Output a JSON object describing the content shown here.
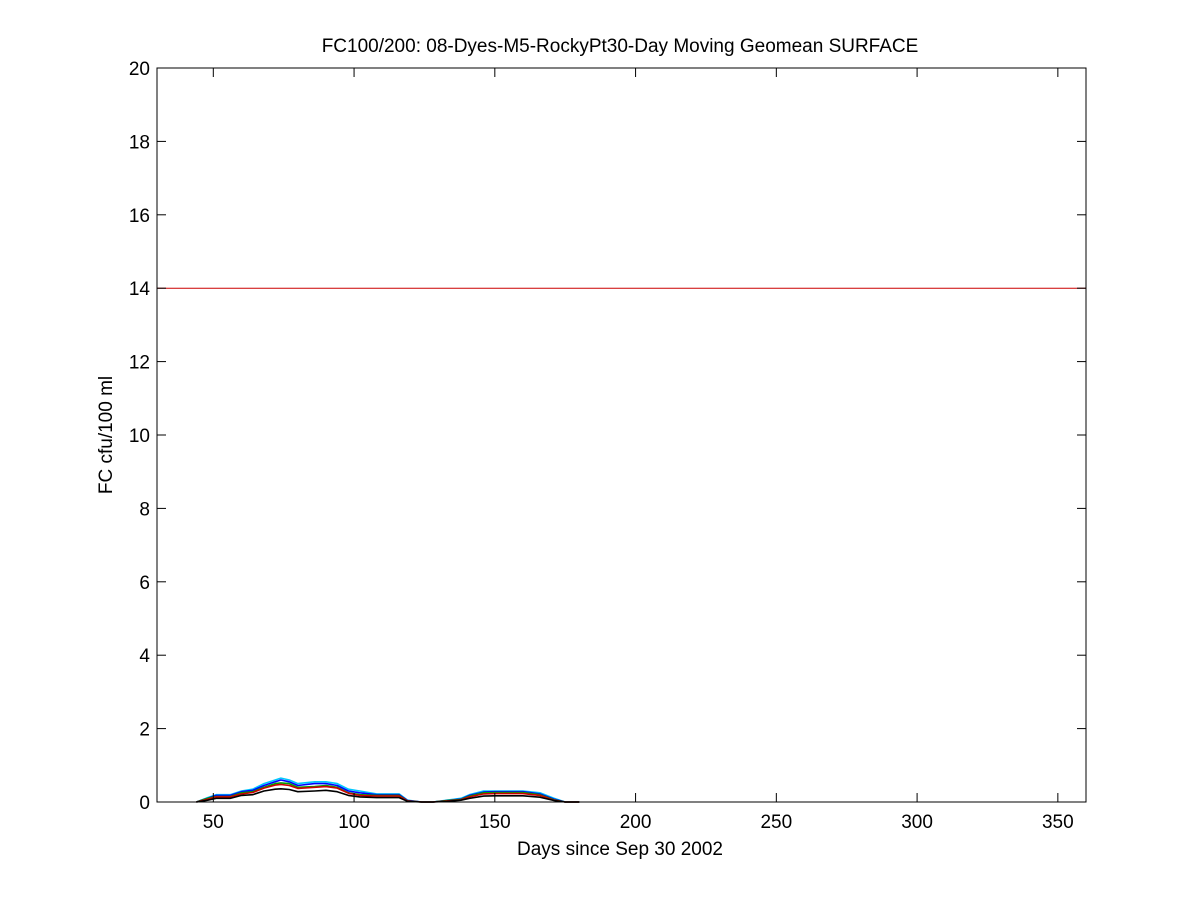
{
  "chart_data": {
    "type": "line",
    "title": "FC100/200: 08-Dyes-M5-RockyPt30-Day Moving Geomean SURFACE",
    "xlabel": "Days since Sep 30 2002",
    "ylabel": "FC cfu/100 ml",
    "xlim": [
      30,
      360
    ],
    "ylim": [
      0,
      20
    ],
    "x_ticks": [
      50,
      100,
      150,
      200,
      250,
      300,
      350
    ],
    "y_ticks": [
      0,
      2,
      4,
      6,
      8,
      10,
      12,
      14,
      16,
      18,
      20
    ],
    "x_tick_labels": [
      "50",
      "100",
      "150",
      "200",
      "250",
      "300",
      "350"
    ],
    "y_tick_labels": [
      "0",
      "2",
      "4",
      "6",
      "8",
      "10",
      "12",
      "14",
      "16",
      "18",
      "20"
    ],
    "grid": false,
    "legend": "none",
    "reference_lines": [
      {
        "y": 14,
        "color": "#cc0000"
      }
    ],
    "series": [
      {
        "color": "#00c8ff",
        "x": [
          44,
          48,
          51,
          56,
          60,
          64,
          68,
          72,
          74,
          77,
          80,
          86,
          90,
          94,
          98,
          102,
          108,
          116,
          119,
          124,
          128,
          133,
          138,
          141,
          146,
          150,
          160,
          166,
          171,
          175,
          180
        ],
        "y": [
          0,
          0.12,
          0.2,
          0.2,
          0.3,
          0.35,
          0.5,
          0.6,
          0.65,
          0.6,
          0.5,
          0.55,
          0.55,
          0.5,
          0.35,
          0.3,
          0.22,
          0.22,
          0.05,
          0,
          0,
          0.05,
          0.1,
          0.2,
          0.3,
          0.3,
          0.3,
          0.25,
          0.1,
          0,
          0
        ]
      },
      {
        "color": "#0000ff",
        "x": [
          44,
          48,
          51,
          56,
          60,
          64,
          68,
          72,
          74,
          77,
          80,
          86,
          90,
          94,
          98,
          102,
          108,
          116,
          119,
          124,
          128,
          133,
          138,
          141,
          146,
          150,
          160,
          166,
          171,
          175,
          180
        ],
        "y": [
          0,
          0.1,
          0.18,
          0.18,
          0.28,
          0.32,
          0.45,
          0.55,
          0.6,
          0.55,
          0.45,
          0.5,
          0.5,
          0.45,
          0.3,
          0.25,
          0.2,
          0.2,
          0.04,
          0,
          0,
          0.04,
          0.08,
          0.18,
          0.27,
          0.28,
          0.28,
          0.22,
          0.08,
          0,
          0
        ]
      },
      {
        "color": "#00a000",
        "x": [
          44,
          48,
          51,
          56,
          60,
          64,
          68,
          72,
          74,
          77,
          80,
          86,
          90,
          94,
          98,
          102,
          108,
          116,
          119,
          124,
          128,
          133,
          138,
          141,
          146,
          150,
          160,
          166,
          171,
          175,
          180
        ],
        "y": [
          0,
          0.1,
          0.15,
          0.15,
          0.25,
          0.28,
          0.4,
          0.5,
          0.52,
          0.5,
          0.4,
          0.42,
          0.45,
          0.4,
          0.25,
          0.2,
          0.18,
          0.18,
          0.03,
          0,
          0,
          0.04,
          0.07,
          0.16,
          0.25,
          0.26,
          0.26,
          0.2,
          0.06,
          0,
          0
        ]
      },
      {
        "color": "#cc0000",
        "x": [
          44,
          48,
          51,
          56,
          60,
          64,
          68,
          72,
          74,
          77,
          80,
          86,
          90,
          94,
          98,
          102,
          108,
          116,
          119,
          124,
          128,
          133,
          138,
          141,
          146,
          150,
          160,
          166,
          171,
          175,
          180
        ],
        "y": [
          0,
          0.08,
          0.14,
          0.14,
          0.22,
          0.26,
          0.38,
          0.46,
          0.48,
          0.45,
          0.37,
          0.4,
          0.42,
          0.38,
          0.24,
          0.18,
          0.16,
          0.16,
          0.03,
          0,
          0,
          0.03,
          0.06,
          0.14,
          0.22,
          0.23,
          0.23,
          0.18,
          0.05,
          0,
          0
        ]
      },
      {
        "color": "#000000",
        "x": [
          44,
          48,
          51,
          56,
          60,
          64,
          68,
          72,
          74,
          77,
          80,
          86,
          90,
          94,
          98,
          102,
          108,
          116,
          119,
          124,
          128,
          133,
          138,
          141,
          146,
          150,
          160,
          166,
          171,
          175,
          180
        ],
        "y": [
          0,
          0.05,
          0.1,
          0.1,
          0.18,
          0.2,
          0.3,
          0.35,
          0.36,
          0.34,
          0.28,
          0.3,
          0.32,
          0.28,
          0.18,
          0.14,
          0.12,
          0.12,
          0.02,
          0,
          0,
          0.02,
          0.05,
          0.1,
          0.16,
          0.17,
          0.17,
          0.13,
          0.04,
          0,
          0
        ]
      }
    ]
  }
}
